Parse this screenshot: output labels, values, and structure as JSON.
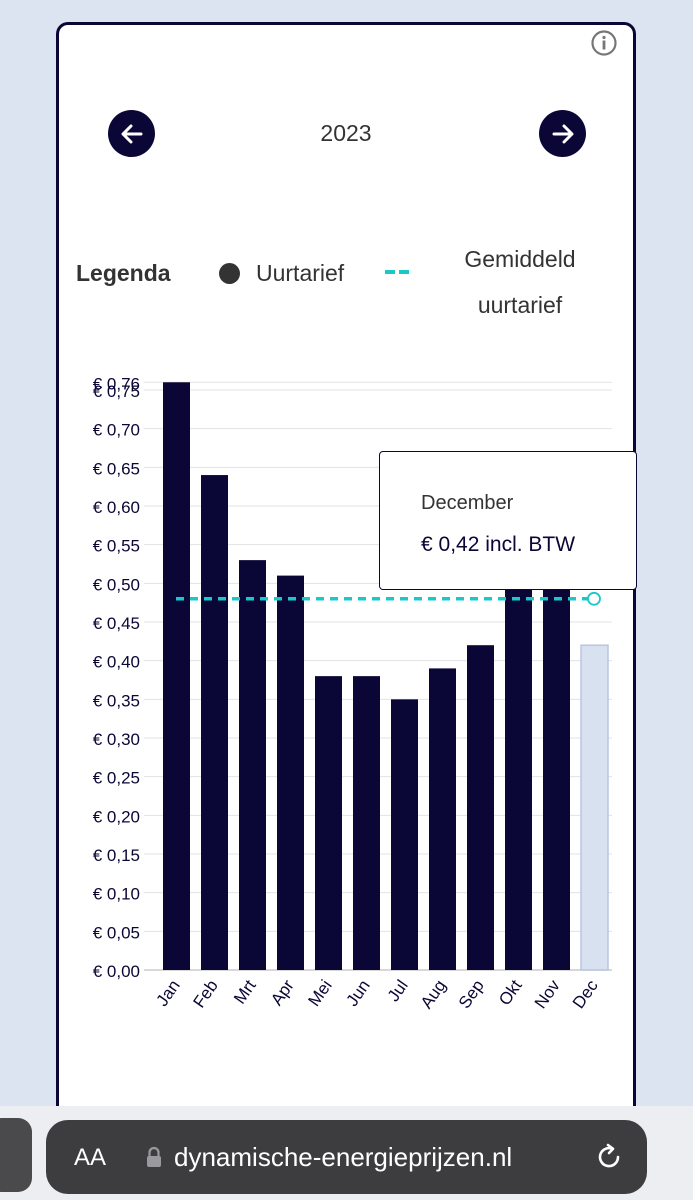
{
  "header": {
    "year": "2023",
    "prev_icon": "arrow-left-icon",
    "next_icon": "arrow-right-icon",
    "info_icon": "info-icon"
  },
  "legend": {
    "title": "Legenda",
    "hourly_label": "Uurtarief",
    "average_label_line1": "Gemiddeld",
    "average_label_line2": "uurtarief"
  },
  "colors": {
    "bar": "#0a0636",
    "bar_selected": "#d7e1f0",
    "average_line": "#19c9c9",
    "text": "#333333",
    "grid": "#e3e3e3"
  },
  "chart_data": {
    "type": "bar",
    "categories": [
      "Jan",
      "Feb",
      "Mrt",
      "Apr",
      "Mei",
      "Jun",
      "Jul",
      "Aug",
      "Sep",
      "Okt",
      "Nov",
      "Dec"
    ],
    "series": [
      {
        "name": "Uurtarief",
        "values": [
          0.76,
          0.64,
          0.53,
          0.51,
          0.38,
          0.38,
          0.35,
          0.39,
          0.42,
          0.5,
          0.5,
          0.42
        ]
      }
    ],
    "average": {
      "name": "Gemiddeld uurtarief",
      "value": 0.48
    },
    "y_ticks": [
      "€ 0,00",
      "€ 0,05",
      "€ 0,10",
      "€ 0,15",
      "€ 0,20",
      "€ 0,25",
      "€ 0,30",
      "€ 0,35",
      "€ 0,40",
      "€ 0,45",
      "€ 0,50",
      "€ 0,55",
      "€ 0,60",
      "€ 0,65",
      "€ 0,70",
      "€ 0,75"
    ],
    "y_max_label": "€ 0,76",
    "ylim": [
      0,
      0.76
    ],
    "selected_index": 11,
    "grid": true,
    "legend": "top"
  },
  "tooltip": {
    "title": "December",
    "value": "€ 0,42 incl. BTW"
  },
  "browser": {
    "text_size_label": "AA",
    "url": "dynamische-energieprijzen.nl",
    "lock_icon": "lock-icon",
    "reload_icon": "reload-icon"
  }
}
